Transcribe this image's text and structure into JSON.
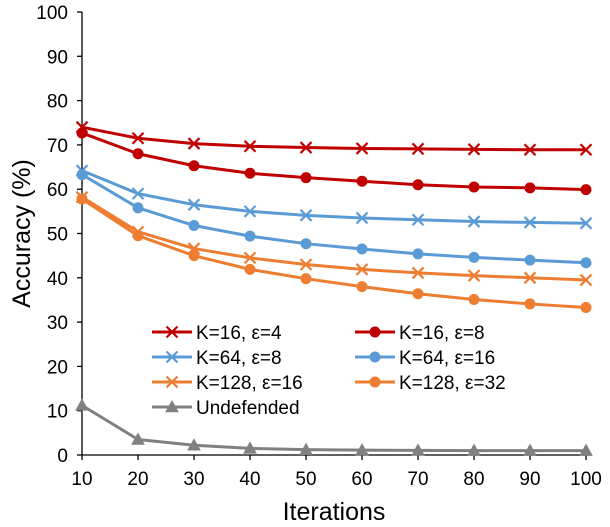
{
  "chart_data": {
    "type": "line",
    "title": "",
    "xlabel": "Iterations",
    "ylabel": "Accuracy (%)",
    "x": [
      10,
      20,
      30,
      40,
      50,
      60,
      70,
      80,
      90,
      100
    ],
    "xlim": [
      10,
      100
    ],
    "ylim": [
      0,
      100
    ],
    "x_ticks": [
      "10",
      "20",
      "30",
      "40",
      "50",
      "60",
      "70",
      "80",
      "90",
      "100"
    ],
    "y_ticks": [
      "0",
      "10",
      "20",
      "30",
      "40",
      "50",
      "60",
      "70",
      "80",
      "90",
      "100"
    ],
    "grid": false,
    "legend_position": "lower-left (inside plot)",
    "series": [
      {
        "name": "K=16, ε=4",
        "color": "#c00000",
        "marker": "x",
        "values": [
          74,
          71.5,
          70.3,
          69.7,
          69.4,
          69.2,
          69.1,
          69.0,
          68.9,
          68.9
        ]
      },
      {
        "name": "K=16, ε=8",
        "color": "#c00000",
        "marker": "circle",
        "values": [
          72.7,
          68,
          65.3,
          63.6,
          62.6,
          61.8,
          61.0,
          60.5,
          60.3,
          59.9
        ]
      },
      {
        "name": "K=64, ε=8",
        "color": "#5b9bd5",
        "marker": "x",
        "values": [
          64.2,
          59,
          56.5,
          55.0,
          54.1,
          53.5,
          53.1,
          52.7,
          52.5,
          52.3
        ]
      },
      {
        "name": "K=64, ε=16",
        "color": "#5b9bd5",
        "marker": "circle",
        "values": [
          63.3,
          55.8,
          51.8,
          49.4,
          47.7,
          46.5,
          45.4,
          44.6,
          44.0,
          43.4
        ]
      },
      {
        "name": "K=128, ε=16",
        "color": "#ed7d31",
        "marker": "x",
        "values": [
          58.2,
          50.4,
          46.6,
          44.5,
          43.0,
          41.9,
          41.1,
          40.5,
          40.0,
          39.5
        ]
      },
      {
        "name": "K=128, ε=32",
        "color": "#ed7d31",
        "marker": "circle",
        "values": [
          57.8,
          49.5,
          45.0,
          41.9,
          39.8,
          38.0,
          36.4,
          35.1,
          34.1,
          33.3
        ]
      },
      {
        "name": "Undefended",
        "color": "#808080",
        "marker": "triangle",
        "values": [
          11.2,
          3.5,
          2.2,
          1.5,
          1.2,
          1.1,
          1.05,
          1.0,
          1.0,
          1.0
        ]
      }
    ]
  }
}
